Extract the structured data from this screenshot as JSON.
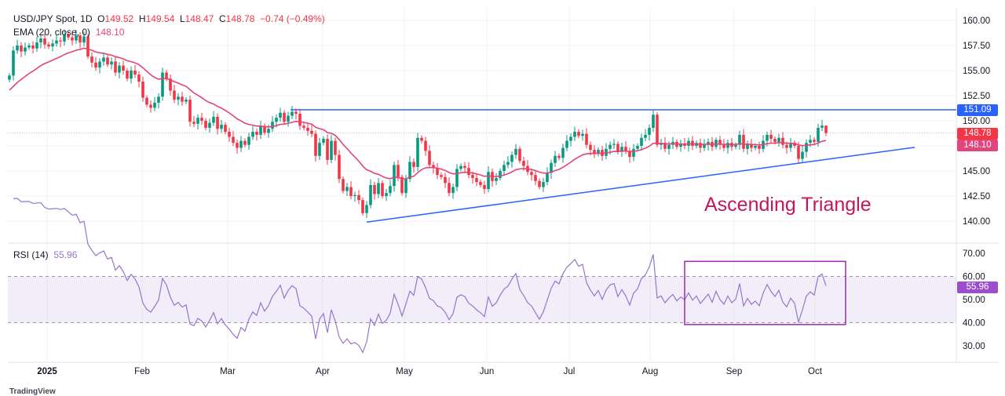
{
  "legend": {
    "symbol": "USD/JPY Spot, 1D",
    "open_label": "O",
    "open": "149.52",
    "high_label": "H",
    "high": "149.54",
    "low_label": "L",
    "low": "148.47",
    "close_label": "C",
    "close": "148.78",
    "change": "−0.74 (−0.49%)",
    "ema_label": "EMA (20, close, 0)",
    "ema_value": "148.10",
    "rsi_label": "RSI (14)",
    "rsi_value": "55.96"
  },
  "price_tags": {
    "resistance": "151.09",
    "last": "148.78",
    "ema": "148.10",
    "rsi": "55.96"
  },
  "annotation": "Ascending Triangle",
  "logo": "TradingView",
  "colors": {
    "up": "#089981",
    "down": "#f23645",
    "ema": "#e0457b",
    "trendline": "#2962ff",
    "rsi": "#9575cd",
    "rsi_band": "#7e57c2",
    "annotation": "#c2185b",
    "box": "#9c27b0"
  },
  "chart_data": [
    {
      "type": "candlestick",
      "title": "USD/JPY Spot, 1D",
      "ylim": [
        138,
        161
      ],
      "y_ticks": [
        "160.00",
        "157.50",
        "155.00",
        "152.50",
        "150.00",
        "145.00",
        "142.50",
        "140.00"
      ],
      "x_ticks": [
        "2025",
        "Feb",
        "Mar",
        "Apr",
        "May",
        "Jun",
        "Jul",
        "Aug",
        "Sep",
        "Oct"
      ],
      "grid": true,
      "close": [
        154.5,
        157.0,
        157.5,
        156.9,
        157.3,
        157.5,
        157.2,
        157.8,
        158.2,
        157.6,
        157.4,
        157.7,
        158.0,
        157.9,
        158.6,
        158.3,
        158.0,
        158.5,
        157.8,
        158.4,
        156.4,
        155.8,
        155.3,
        155.9,
        156.3,
        155.6,
        155.9,
        154.8,
        155.5,
        155.0,
        154.2,
        155.0,
        154.6,
        153.9,
        152.3,
        151.6,
        151.3,
        151.8,
        152.4,
        154.8,
        154.2,
        153.0,
        152.1,
        152.4,
        151.9,
        152.1,
        149.9,
        149.7,
        150.3,
        150.0,
        149.3,
        149.8,
        150.4,
        149.2,
        149.6,
        148.9,
        148.4,
        147.8,
        147.3,
        148.0,
        147.6,
        148.4,
        148.9,
        148.6,
        149.5,
        148.8,
        149.2,
        149.9,
        150.3,
        150.8,
        149.9,
        150.5,
        150.9,
        150.7,
        149.5,
        149.3,
        149.0,
        148.7,
        146.5,
        147.8,
        148.2,
        146.1,
        148.0,
        146.6,
        144.2,
        143.0,
        143.4,
        142.5,
        142.6,
        142.1,
        140.8,
        141.6,
        143.6,
        142.7,
        143.8,
        142.5,
        142.8,
        143.5,
        145.6,
        144.4,
        142.8,
        144.2,
        145.9,
        145.4,
        148.3,
        148.0,
        147.0,
        145.6,
        145.3,
        144.6,
        144.4,
        143.8,
        142.8,
        143.4,
        145.2,
        145.5,
        145.3,
        144.6,
        144.3,
        143.9,
        143.6,
        143.2,
        144.9,
        144.0,
        144.3,
        145.0,
        145.6,
        145.9,
        146.6,
        147.2,
        146.0,
        145.5,
        144.9,
        144.6,
        144.0,
        143.4,
        143.9,
        144.8,
        145.8,
        146.5,
        146.3,
        147.3,
        148.0,
        148.4,
        148.9,
        148.5,
        148.7,
        147.6,
        147.1,
        146.7,
        147.1,
        146.5,
        147.2,
        147.6,
        147.7,
        146.9,
        147.4,
        147.0,
        146.4,
        147.2,
        147.5,
        148.3,
        148.6,
        149.3,
        150.6,
        147.6,
        147.8,
        147.2,
        147.6,
        147.9,
        147.4,
        147.7,
        147.5,
        148.0,
        147.5,
        147.8,
        147.3,
        147.6,
        147.9,
        147.4,
        148.1,
        147.6,
        147.3,
        147.8,
        147.4,
        147.6,
        148.6,
        147.2,
        147.7,
        147.3,
        147.5,
        147.2,
        148.0,
        148.6,
        148.2,
        147.9,
        148.3,
        147.6,
        147.3,
        147.8,
        147.5,
        146.2,
        146.9,
        147.8,
        148.1,
        147.9,
        149.3,
        149.52,
        148.78
      ],
      "overlays": {
        "ema_period": 20,
        "resistance": 151.09,
        "support_line": [
          {
            "bar": 91,
            "price": 139.9
          },
          {
            "bar": 230.6,
            "price": 147.35
          }
        ]
      }
    },
    {
      "type": "line",
      "title": "RSI (14)",
      "ylim": [
        25,
        75
      ],
      "y_ticks": [
        "70.00",
        "60.00",
        "50.00",
        "40.00",
        "30.00"
      ],
      "band": [
        40,
        60
      ],
      "last": 55.96,
      "highlight_box": {
        "bars": [
          172,
          213
        ],
        "rsi": [
          39.2,
          66.5
        ]
      }
    }
  ]
}
